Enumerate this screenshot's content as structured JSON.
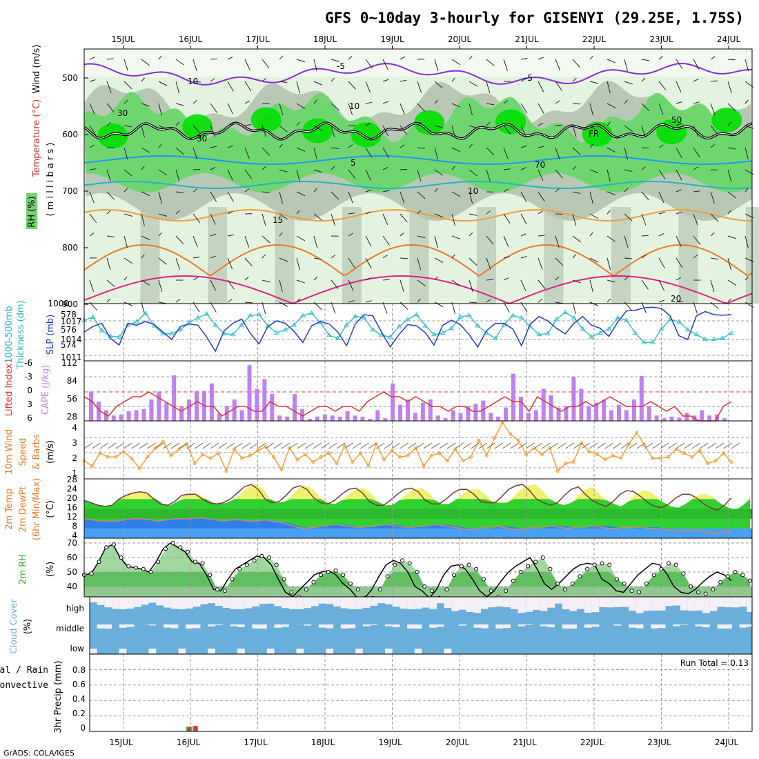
{
  "title": "GFS 0~10day 3-hourly for GISENYI (29.25E, 1.75S)",
  "footer": "GrADS: COLA/IGES",
  "run_total": "Run Total = 0.13",
  "dates": [
    "15JUL",
    "16JUL",
    "17JUL",
    "18JUL",
    "19JUL",
    "20JUL",
    "21JUL",
    "22JUL",
    "23JUL",
    "24JUL"
  ],
  "colors": {
    "rh_light": "#e4f2e0",
    "rh_mid": "#c9e6c0",
    "rh_gray": "#b8c8b4",
    "rh_green": "#6fd66f",
    "rh_bright": "#00e000",
    "purple": "#8a2bd6",
    "blue": "#2196f3",
    "cyan": "#1fb5c8",
    "orange_l": "#f0a030",
    "orange": "#e87a20",
    "magenta": "#e0208a",
    "slp": "#1f3fbf",
    "thick": "#3cc0c8",
    "cape": "#c080f0",
    "li": "#e03030",
    "wind": "#f0a030",
    "temp_yellow": "#f0f070",
    "temp_green": "#30d030",
    "dew_blue": "#2f7fe8",
    "rh2m": "#30d030",
    "cloud": "#6aaedc",
    "cloud_bg": "#f4f0f6"
  },
  "panels": {
    "upper": {
      "label_rh": "RH (%)",
      "label_temp": "Temperature (°C)",
      "label_wind": "Wind (m/s)",
      "label_units": "( m i l l i b a r s )",
      "yticks": [
        "500",
        "600",
        "700",
        "800",
        "900"
      ],
      "contour_labels": [
        "-5",
        "-5",
        "5",
        "10",
        "15",
        "20",
        "FR",
        "30",
        "10",
        "10",
        "50",
        "10",
        "30",
        "50",
        "70"
      ]
    },
    "slp": {
      "label_left1": "1000-500mb",
      "label_left2": "Thickness (dm)",
      "label_right": "SLP (mb)",
      "left_ticks": [
        "578",
        "576",
        "574"
      ],
      "right_ticks": [
        "1017",
        "1014",
        "1011"
      ]
    },
    "cape": {
      "label_left": "Lifted Index",
      "label_right": "CAPE (J/kg)",
      "left_ticks": [
        "-6",
        "-3",
        "0",
        "3",
        "6"
      ],
      "right_ticks": [
        "112",
        "84",
        "56",
        "28"
      ]
    },
    "wind": {
      "label1": "10m Wind",
      "label2": "Speed",
      "label3": "& Barbs",
      "label4": "(m/s)",
      "ticks": [
        "4",
        "3",
        "2",
        "1"
      ]
    },
    "temp": {
      "label1": "2m Temp",
      "label2": "2m DewPt",
      "label3": "(6hr Min/Max)",
      "label4": "(°C)",
      "ticks": [
        "28",
        "24",
        "20",
        "16",
        "12",
        "8",
        "4"
      ]
    },
    "rh": {
      "label1": "2m RH",
      "label2": "(%)",
      "ticks": [
        "70",
        "60",
        "50",
        "40"
      ]
    },
    "cloud": {
      "label1": "Cloud Cover",
      "label2": "(%)",
      "rows": [
        "high",
        "middle",
        "low"
      ]
    },
    "precip": {
      "label1": "Total / Rain",
      "label2": "Convective",
      "label3": "3hr Precip (mm)",
      "ticks": [
        "0.8",
        "0.6",
        "0.4",
        "0.2",
        "0"
      ]
    }
  },
  "chart_data": [
    {
      "type": "line",
      "title": "1000-500mb Thickness (dm) / SLP (mb)",
      "x_unit": "3-hourly steps from 14JUL 12Z",
      "series": [
        {
          "name": "SLP (mb)",
          "values": [
            1015.2,
            1016.1,
            1016.6,
            1014.2,
            1013.1,
            1016.6,
            1016.3,
            1016.9,
            1016.4,
            1015.2,
            1014.0,
            1016.1,
            1016.5,
            1016.3,
            1014.4,
            1012.1,
            1015.4,
            1016.6,
            1017.3,
            1015.0,
            1013.3,
            1016.1,
            1017.0,
            1016.6,
            1015.3,
            1013.5,
            1016.2,
            1016.9,
            1016.5,
            1015.2,
            1013.0,
            1016.5,
            1018.0,
            1017.8,
            1015.2,
            1012.8,
            1014.8,
            1016.4,
            1016.2,
            1015.1,
            1013.1,
            1016.3,
            1017.1,
            1016.4,
            1014.8,
            1012.8,
            1015.4,
            1016.6,
            1016.6,
            1015.7,
            1013.0,
            1016.5,
            1017.7,
            1017.0,
            1015.8,
            1014.9,
            1016.6,
            1017.7,
            1016.3,
            1015.8,
            1014.5,
            1016.8,
            1018.6,
            1018.7,
            1019.1,
            1019.2,
            1019.0,
            1017.8,
            1014.6,
            1014.0,
            1017.8,
            1018.5,
            1018.0,
            1017.9,
            1018.0
          ]
        },
        {
          "name": "1000-500mb Thickness (dm)",
          "values": [
            577.3,
            577.7,
            576.0,
            575.3,
            575.2,
            576.7,
            577.1,
            578.2,
            576.6,
            575.6,
            575.6,
            576.1,
            577.0,
            577.6,
            578.1,
            576.7,
            575.6,
            575.5,
            576.7,
            577.9,
            578.0,
            576.6,
            575.7,
            576.1,
            576.7,
            577.9,
            578.2,
            577.0,
            575.4,
            575.0,
            576.7,
            577.8,
            577.6,
            576.1,
            575.4,
            575.2,
            576.5,
            577.4,
            578.0,
            576.6,
            575.5,
            575.7,
            576.3,
            577.7,
            577.9,
            576.6,
            575.7,
            575.0,
            576.7,
            577.9,
            577.6,
            576.5,
            575.5,
            575.6,
            577.4,
            578.3,
            577.6,
            576.2,
            575.2,
            575.7,
            576.2,
            577.6,
            577.3,
            575.7,
            574.5,
            574.5,
            576.2,
            577.4,
            577.1,
            576.1,
            575.5,
            574.9,
            574.9,
            575.0,
            575.7
          ]
        }
      ]
    },
    {
      "type": "bar",
      "title": "CAPE (J/kg) / Lifted Index",
      "series": [
        {
          "name": "CAPE (J/kg)",
          "values": [
            55,
            36,
            20,
            10,
            12,
            18,
            20,
            22,
            40,
            55,
            34,
            85,
            28,
            40,
            56,
            56,
            70,
            14,
            28,
            40,
            20,
            104,
            60,
            78,
            50,
            10,
            8,
            50,
            22,
            4,
            8,
            12,
            10,
            8,
            18,
            10,
            8,
            4,
            20,
            5,
            70,
            30,
            40,
            15,
            34,
            40,
            10,
            5,
            20,
            15,
            28,
            32,
            38,
            15,
            8,
            25,
            88,
            45,
            15,
            20,
            60,
            48,
            25,
            28,
            82,
            60,
            28,
            34,
            40,
            20,
            30,
            20,
            40,
            84,
            28,
            10,
            5,
            8,
            6,
            15,
            10,
            20,
            10,
            12,
            5
          ]
        },
        {
          "name": "Lifted Index",
          "values": [
            1,
            2,
            4,
            5,
            3,
            2,
            1,
            1,
            0,
            1,
            2,
            3,
            4,
            3,
            2,
            3,
            3,
            5,
            4,
            3,
            3,
            4,
            4,
            2,
            3,
            3,
            4,
            5,
            4,
            3,
            3,
            4,
            3,
            3,
            4,
            2,
            1,
            0,
            1,
            1,
            2,
            1,
            2,
            3,
            3,
            4,
            3,
            3,
            4,
            4,
            3,
            2,
            1,
            2,
            2,
            4,
            1,
            2,
            3,
            4,
            3,
            3,
            2,
            3,
            2,
            1,
            2,
            3,
            3,
            3,
            2,
            3,
            4,
            3,
            5,
            5,
            6,
            6,
            6,
            3,
            2
          ]
        }
      ]
    },
    {
      "type": "line",
      "title": "10m Wind Speed (m/s)",
      "series": [
        {
          "name": "10m Wind Speed (m/s)",
          "values": [
            1.2,
            0.8,
            1.8,
            1.5,
            1.5,
            1.9,
            1.4,
            0.6,
            1.5,
            2.2,
            2.7,
            1.6,
            2.1,
            2.5,
            1.0,
            1.7,
            1.4,
            1.8,
            0.4,
            2.1,
            1.4,
            1.6,
            2.0,
            2.3,
            1.5,
            0.5,
            2.2,
            1.3,
            1.7,
            1.1,
            1.5,
            1.8,
            1.0,
            2.4,
            1.1,
            1.8,
            0.8,
            2.5,
            1.3,
            2.0,
            1.5,
            1.6,
            2.2,
            0.8,
            1.6,
            1.8,
            1.2,
            2.1,
            1.2,
            1.5,
            2.8,
            1.6,
            3.0,
            4.2,
            3.3,
            2.8,
            1.7,
            2.2,
            1.7,
            2.2,
            0.4,
            1.0,
            1.1,
            2.6,
            1.9,
            1.7,
            1.3,
            1.6,
            1.4,
            2.5,
            3.4,
            2.4,
            1.4,
            1.4,
            1.5,
            2.1,
            1.8,
            1.5,
            2.0,
            1.0,
            1.2,
            1.8,
            1.1
          ]
        }
      ]
    },
    {
      "type": "area",
      "title": "2m Temp / 2m DewPt (°C)",
      "series": [
        {
          "name": "2m Temp (°C)",
          "values": [
            19.5,
            18.5,
            17.5,
            17.0,
            17.5,
            20.0,
            21.5,
            22.5,
            23.0,
            22.5,
            20.0,
            18.0,
            17.5,
            19.0,
            21.5,
            22.0,
            22.0,
            20.0,
            18.5,
            18.0,
            18.5,
            20.0,
            22.5,
            25.0,
            26.0,
            24.0,
            20.0,
            18.5,
            19.0,
            21.5,
            24.5,
            25.5,
            24.0,
            20.5,
            18.5,
            18.0,
            19.5,
            22.0,
            24.0,
            24.5,
            22.5,
            19.0,
            17.5,
            17.5,
            19.5,
            22.0,
            24.0,
            24.5,
            23.0,
            19.5,
            18.0,
            18.0,
            20.0,
            22.5,
            24.0,
            24.0,
            22.0,
            19.0,
            18.5,
            18.5,
            21.0,
            24.0,
            25.5,
            26.0,
            23.5,
            20.0,
            18.5,
            17.5,
            18.5,
            21.5,
            24.0,
            25.0,
            22.0,
            19.5,
            18.0,
            17.0,
            19.0,
            22.0,
            23.5,
            23.0,
            21.0,
            18.5,
            17.0,
            16.5,
            18.0,
            20.5,
            22.0,
            22.0,
            20.5,
            18.0,
            16.5,
            15.5,
            17.5,
            20.5
          ]
        },
        {
          "name": "2m DewPt (°C)",
          "values": [
            12.0,
            11.5,
            11.0,
            11.0,
            11.0,
            11.5,
            12.0,
            12.0,
            11.5,
            11.0,
            11.5,
            12.0,
            12.0,
            12.0,
            12.5,
            12.0,
            11.5,
            11.0,
            11.5,
            11.5,
            11.0,
            11.0,
            11.5,
            11.0,
            10.5,
            9.5,
            8.5,
            8.0,
            8.5,
            9.0,
            9.5,
            9.5,
            9.0,
            8.5,
            8.5,
            9.0,
            9.5,
            9.5,
            9.0,
            8.5,
            8.5,
            9.0,
            9.5,
            9.5,
            9.0,
            8.5,
            8.0,
            7.5,
            8.0,
            8.5,
            9.0,
            8.5,
            8.0,
            7.5,
            8.0,
            8.5,
            9.0,
            9.0,
            8.5,
            8.0,
            8.5,
            9.0,
            9.0,
            8.5,
            8.0,
            8.0,
            8.5,
            8.5,
            8.5,
            8.0,
            8.0,
            7.5,
            7.0,
            7.0,
            7.5,
            7.0,
            6.5,
            6.0,
            6.5,
            7.0
          ]
        }
      ]
    },
    {
      "type": "area",
      "title": "2m RH (%)",
      "series": [
        {
          "name": "2m RH (%)",
          "values": [
            48,
            49,
            57,
            67,
            69,
            60,
            54,
            53,
            52,
            50,
            57,
            66,
            70,
            67,
            64,
            57,
            56,
            48,
            38,
            37,
            45,
            52,
            55,
            58,
            61,
            60,
            55,
            45,
            36,
            33,
            38,
            43,
            48,
            50,
            51,
            48,
            42,
            38,
            32,
            32,
            38,
            47,
            55,
            58,
            56,
            50,
            40,
            37,
            32,
            38,
            48,
            54,
            55,
            52,
            45,
            37,
            33,
            37,
            44,
            50,
            54,
            57,
            60,
            52,
            42,
            38,
            42,
            47,
            52,
            55,
            56,
            55,
            45,
            42,
            37,
            36,
            42,
            48,
            52,
            56,
            55,
            49,
            40,
            36,
            35,
            38,
            43,
            47,
            50,
            48,
            44
          ]
        }
      ]
    },
    {
      "type": "bar",
      "title": "3hr Precip (mm)",
      "series": [
        {
          "name": "Total / Rain",
          "values": [
            0.06,
            0.07
          ]
        },
        {
          "name": "Convective",
          "values": [
            0.06,
            0.07
          ]
        }
      ]
    }
  ]
}
